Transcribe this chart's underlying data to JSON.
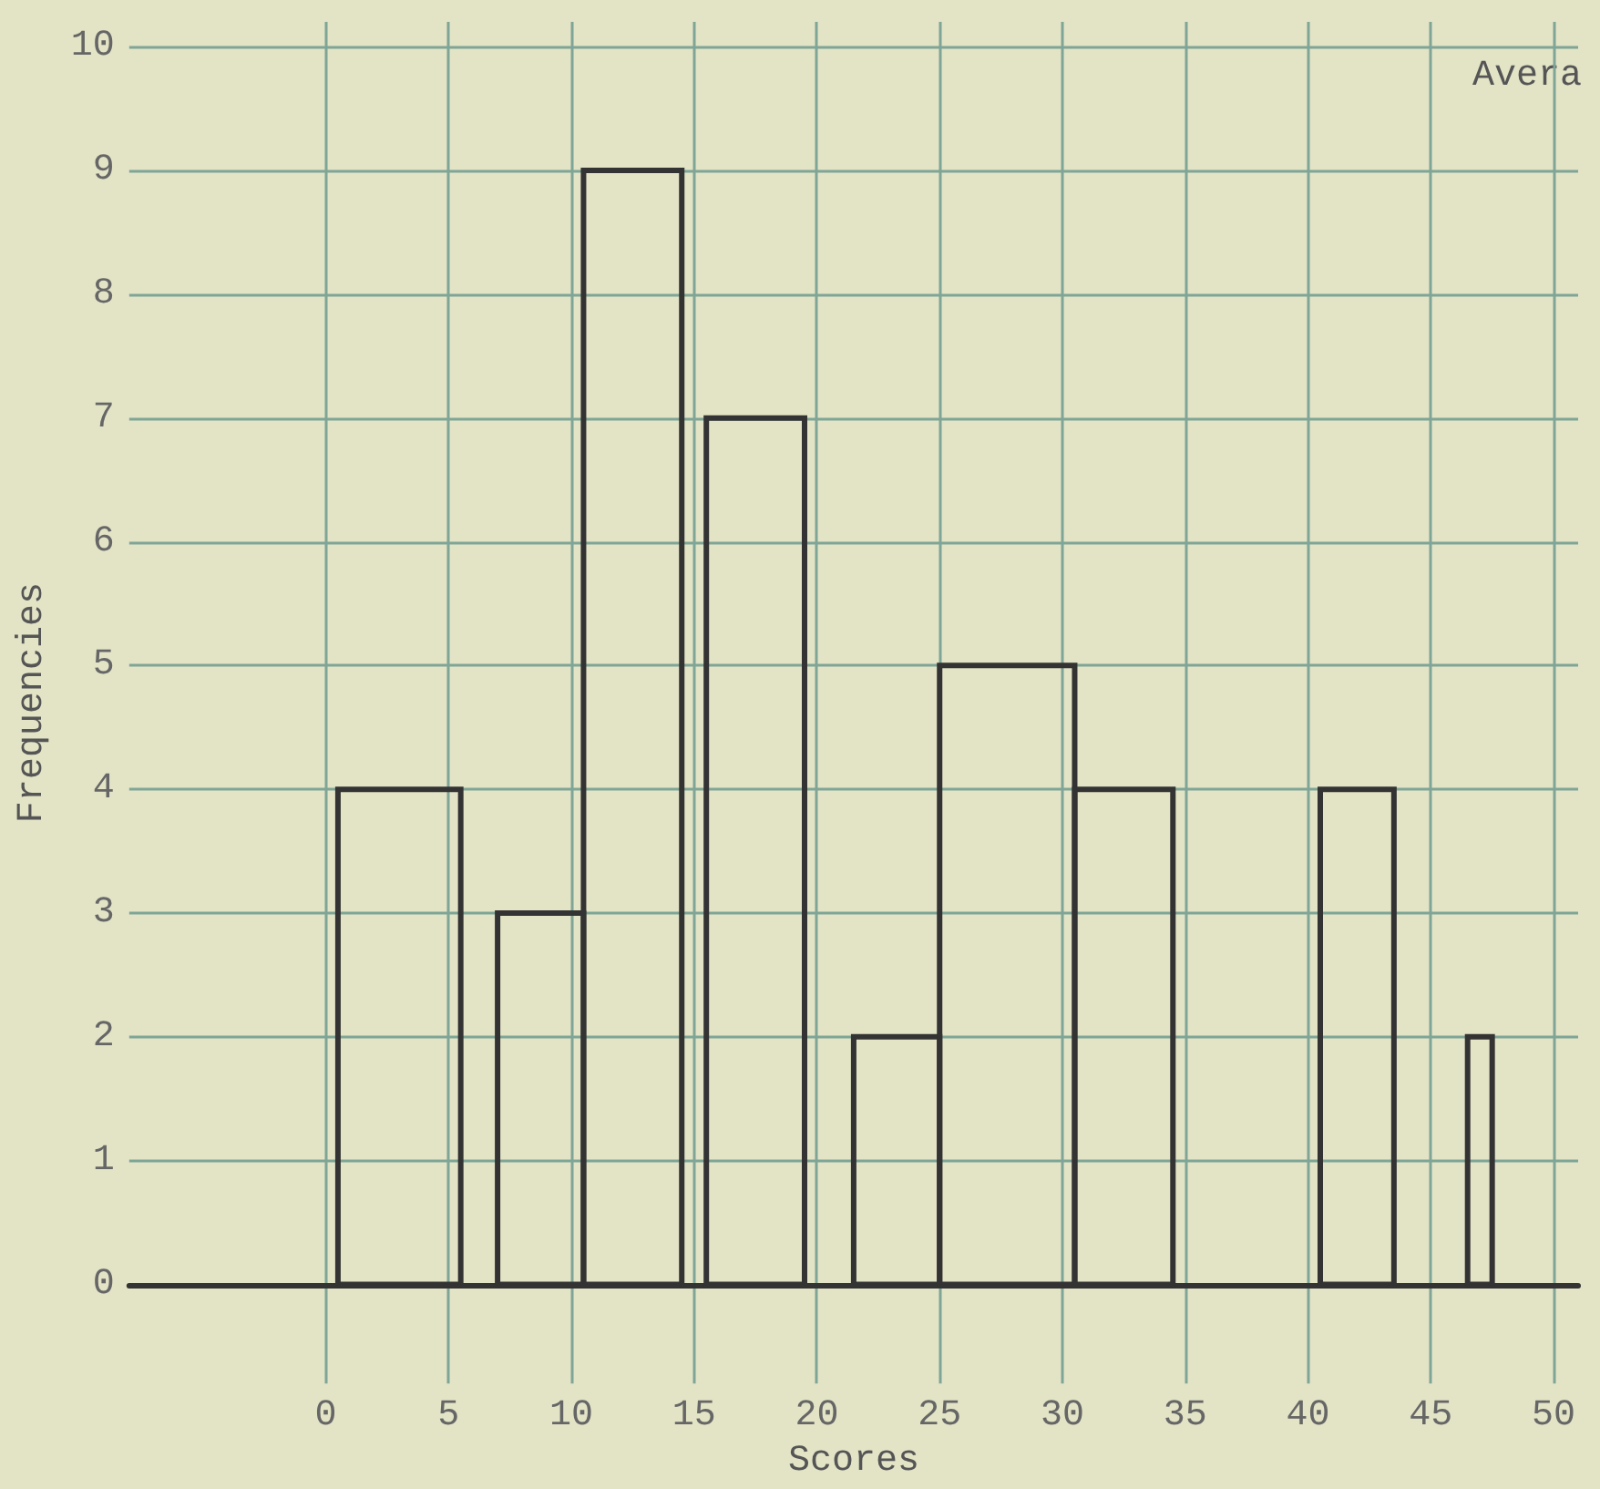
{
  "chart_data": {
    "type": "histogram",
    "xlabel": "Scores",
    "ylabel": "Frequencies",
    "bins": [
      0.5,
      5.5,
      7,
      10.5,
      14.5,
      15.5,
      19.5,
      21.5,
      25,
      30.5,
      34.5,
      40.5,
      43.5,
      46.5,
      47.5
    ],
    "values": [
      4,
      0,
      3,
      9,
      0,
      7,
      0,
      2,
      5,
      4,
      0,
      4,
      0,
      2
    ],
    "color": "#333333",
    "xlim": [
      -8,
      51
    ],
    "xticks": [
      0,
      5,
      10,
      15,
      20,
      25,
      30,
      35,
      40,
      45,
      50
    ],
    "ylim": [
      -0.8,
      10.2
    ],
    "yticks": [
      0,
      1,
      2,
      3,
      4,
      5,
      6,
      7,
      8,
      9,
      10
    ],
    "grid": true,
    "annotations": [
      "Avera"
    ]
  }
}
